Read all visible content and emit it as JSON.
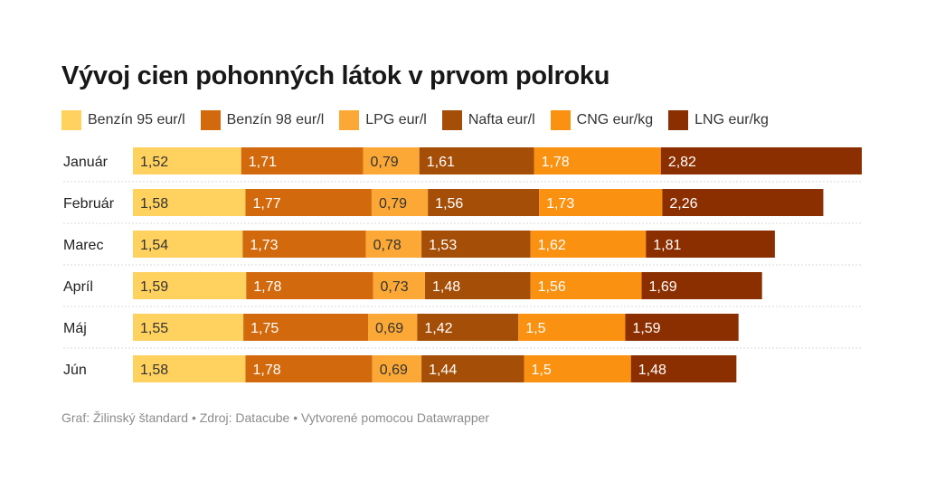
{
  "chart_data": {
    "type": "bar",
    "orientation": "horizontal",
    "stacked": true,
    "title": "Vývoj cien pohonných látok v prvom polroku",
    "categories": [
      "Január",
      "Február",
      "Marec",
      "Apríl",
      "Máj",
      "Jún"
    ],
    "series": [
      {
        "name": "Benzín 95 eur/l",
        "color": "#FFD15F",
        "values": [
          1.52,
          1.58,
          1.54,
          1.59,
          1.55,
          1.58
        ]
      },
      {
        "name": "Benzín 98 eur/l",
        "color": "#D26A0D",
        "values": [
          1.71,
          1.77,
          1.73,
          1.78,
          1.75,
          1.78
        ]
      },
      {
        "name": "LPG eur/l",
        "color": "#FCA836",
        "values": [
          0.79,
          0.79,
          0.78,
          0.73,
          0.69,
          0.69
        ]
      },
      {
        "name": "Nafta eur/l",
        "color": "#A44E07",
        "values": [
          1.61,
          1.56,
          1.53,
          1.48,
          1.42,
          1.44
        ]
      },
      {
        "name": "CNG eur/kg",
        "color": "#FA9110",
        "values": [
          1.78,
          1.73,
          1.62,
          1.56,
          1.5,
          1.5
        ]
      },
      {
        "name": "LNG eur/kg",
        "color": "#8B2F00",
        "values": [
          2.82,
          2.26,
          1.81,
          1.69,
          1.59,
          1.48
        ]
      }
    ],
    "value_labels": [
      [
        "1,52",
        "1,71",
        "0,79",
        "1,61",
        "1,78",
        "2,82"
      ],
      [
        "1,58",
        "1,77",
        "0,79",
        "1,56",
        "1,73",
        "2,26"
      ],
      [
        "1,54",
        "1,73",
        "0,78",
        "1,53",
        "1,62",
        "1,81"
      ],
      [
        "1,59",
        "1,78",
        "0,73",
        "1,48",
        "1,56",
        "1,69"
      ],
      [
        "1,55",
        "1,75",
        "0,69",
        "1,42",
        "1,5",
        "1,59"
      ],
      [
        "1,58",
        "1,78",
        "0,69",
        "1,44",
        "1,5",
        "1,48"
      ]
    ],
    "label_colors": [
      "#333333",
      "#ffffff",
      "#333333",
      "#ffffff",
      "#ffffff",
      "#ffffff"
    ],
    "legend_position": "top-left",
    "grid": false
  },
  "footer": "Graf: Žilinský štandard • Zdroj: Datacube • Vytvorené pomocou Datawrapper"
}
